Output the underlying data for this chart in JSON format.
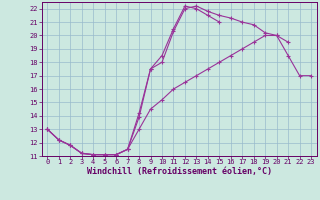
{
  "xlabel": "Windchill (Refroidissement éolien,°C)",
  "background_color": "#cce8e0",
  "grid_color": "#99bbcc",
  "line_color": "#993399",
  "xlim": [
    -0.5,
    23.5
  ],
  "ylim": [
    11,
    22.5
  ],
  "xticks": [
    0,
    1,
    2,
    3,
    4,
    5,
    6,
    7,
    8,
    9,
    10,
    11,
    12,
    13,
    14,
    15,
    16,
    17,
    18,
    19,
    20,
    21,
    22,
    23
  ],
  "yticks": [
    11,
    12,
    13,
    14,
    15,
    16,
    17,
    18,
    19,
    20,
    21,
    22
  ],
  "tick_fontsize": 5.0,
  "xlabel_fontsize": 6.0,
  "line1_x": [
    0,
    1,
    2,
    3,
    4,
    5,
    6,
    7,
    8,
    9,
    10,
    11,
    12,
    13,
    14,
    15,
    16,
    17,
    18,
    19,
    20,
    21
  ],
  "line1_y": [
    13,
    12.2,
    11.8,
    11.2,
    11.1,
    11.1,
    11.1,
    11.5,
    13.9,
    17.5,
    18.0,
    20.3,
    22.0,
    22.2,
    21.8,
    21.5,
    21.3,
    21.0,
    20.8,
    20.2,
    20.0,
    19.5
  ],
  "line2_x": [
    0,
    1,
    2,
    3,
    4,
    5,
    6,
    7,
    8,
    9,
    10,
    11,
    12,
    13,
    14,
    15
  ],
  "line2_y": [
    13,
    12.2,
    11.8,
    11.2,
    11.1,
    11.1,
    11.1,
    11.5,
    14.2,
    17.5,
    18.5,
    20.5,
    22.2,
    22.0,
    21.5,
    21.0
  ],
  "line3_x": [
    0,
    1,
    2,
    3,
    4,
    5,
    6,
    7,
    8,
    9,
    10,
    11,
    12,
    13,
    14,
    15,
    16,
    17,
    18,
    19,
    20,
    21,
    22,
    23
  ],
  "line3_y": [
    13,
    12.2,
    11.8,
    11.2,
    11.1,
    11.1,
    11.1,
    11.5,
    13.0,
    14.5,
    15.2,
    16.0,
    16.5,
    17.0,
    17.5,
    18.0,
    18.5,
    19.0,
    19.5,
    20.0,
    20.0,
    18.5,
    17.0,
    17.0
  ]
}
